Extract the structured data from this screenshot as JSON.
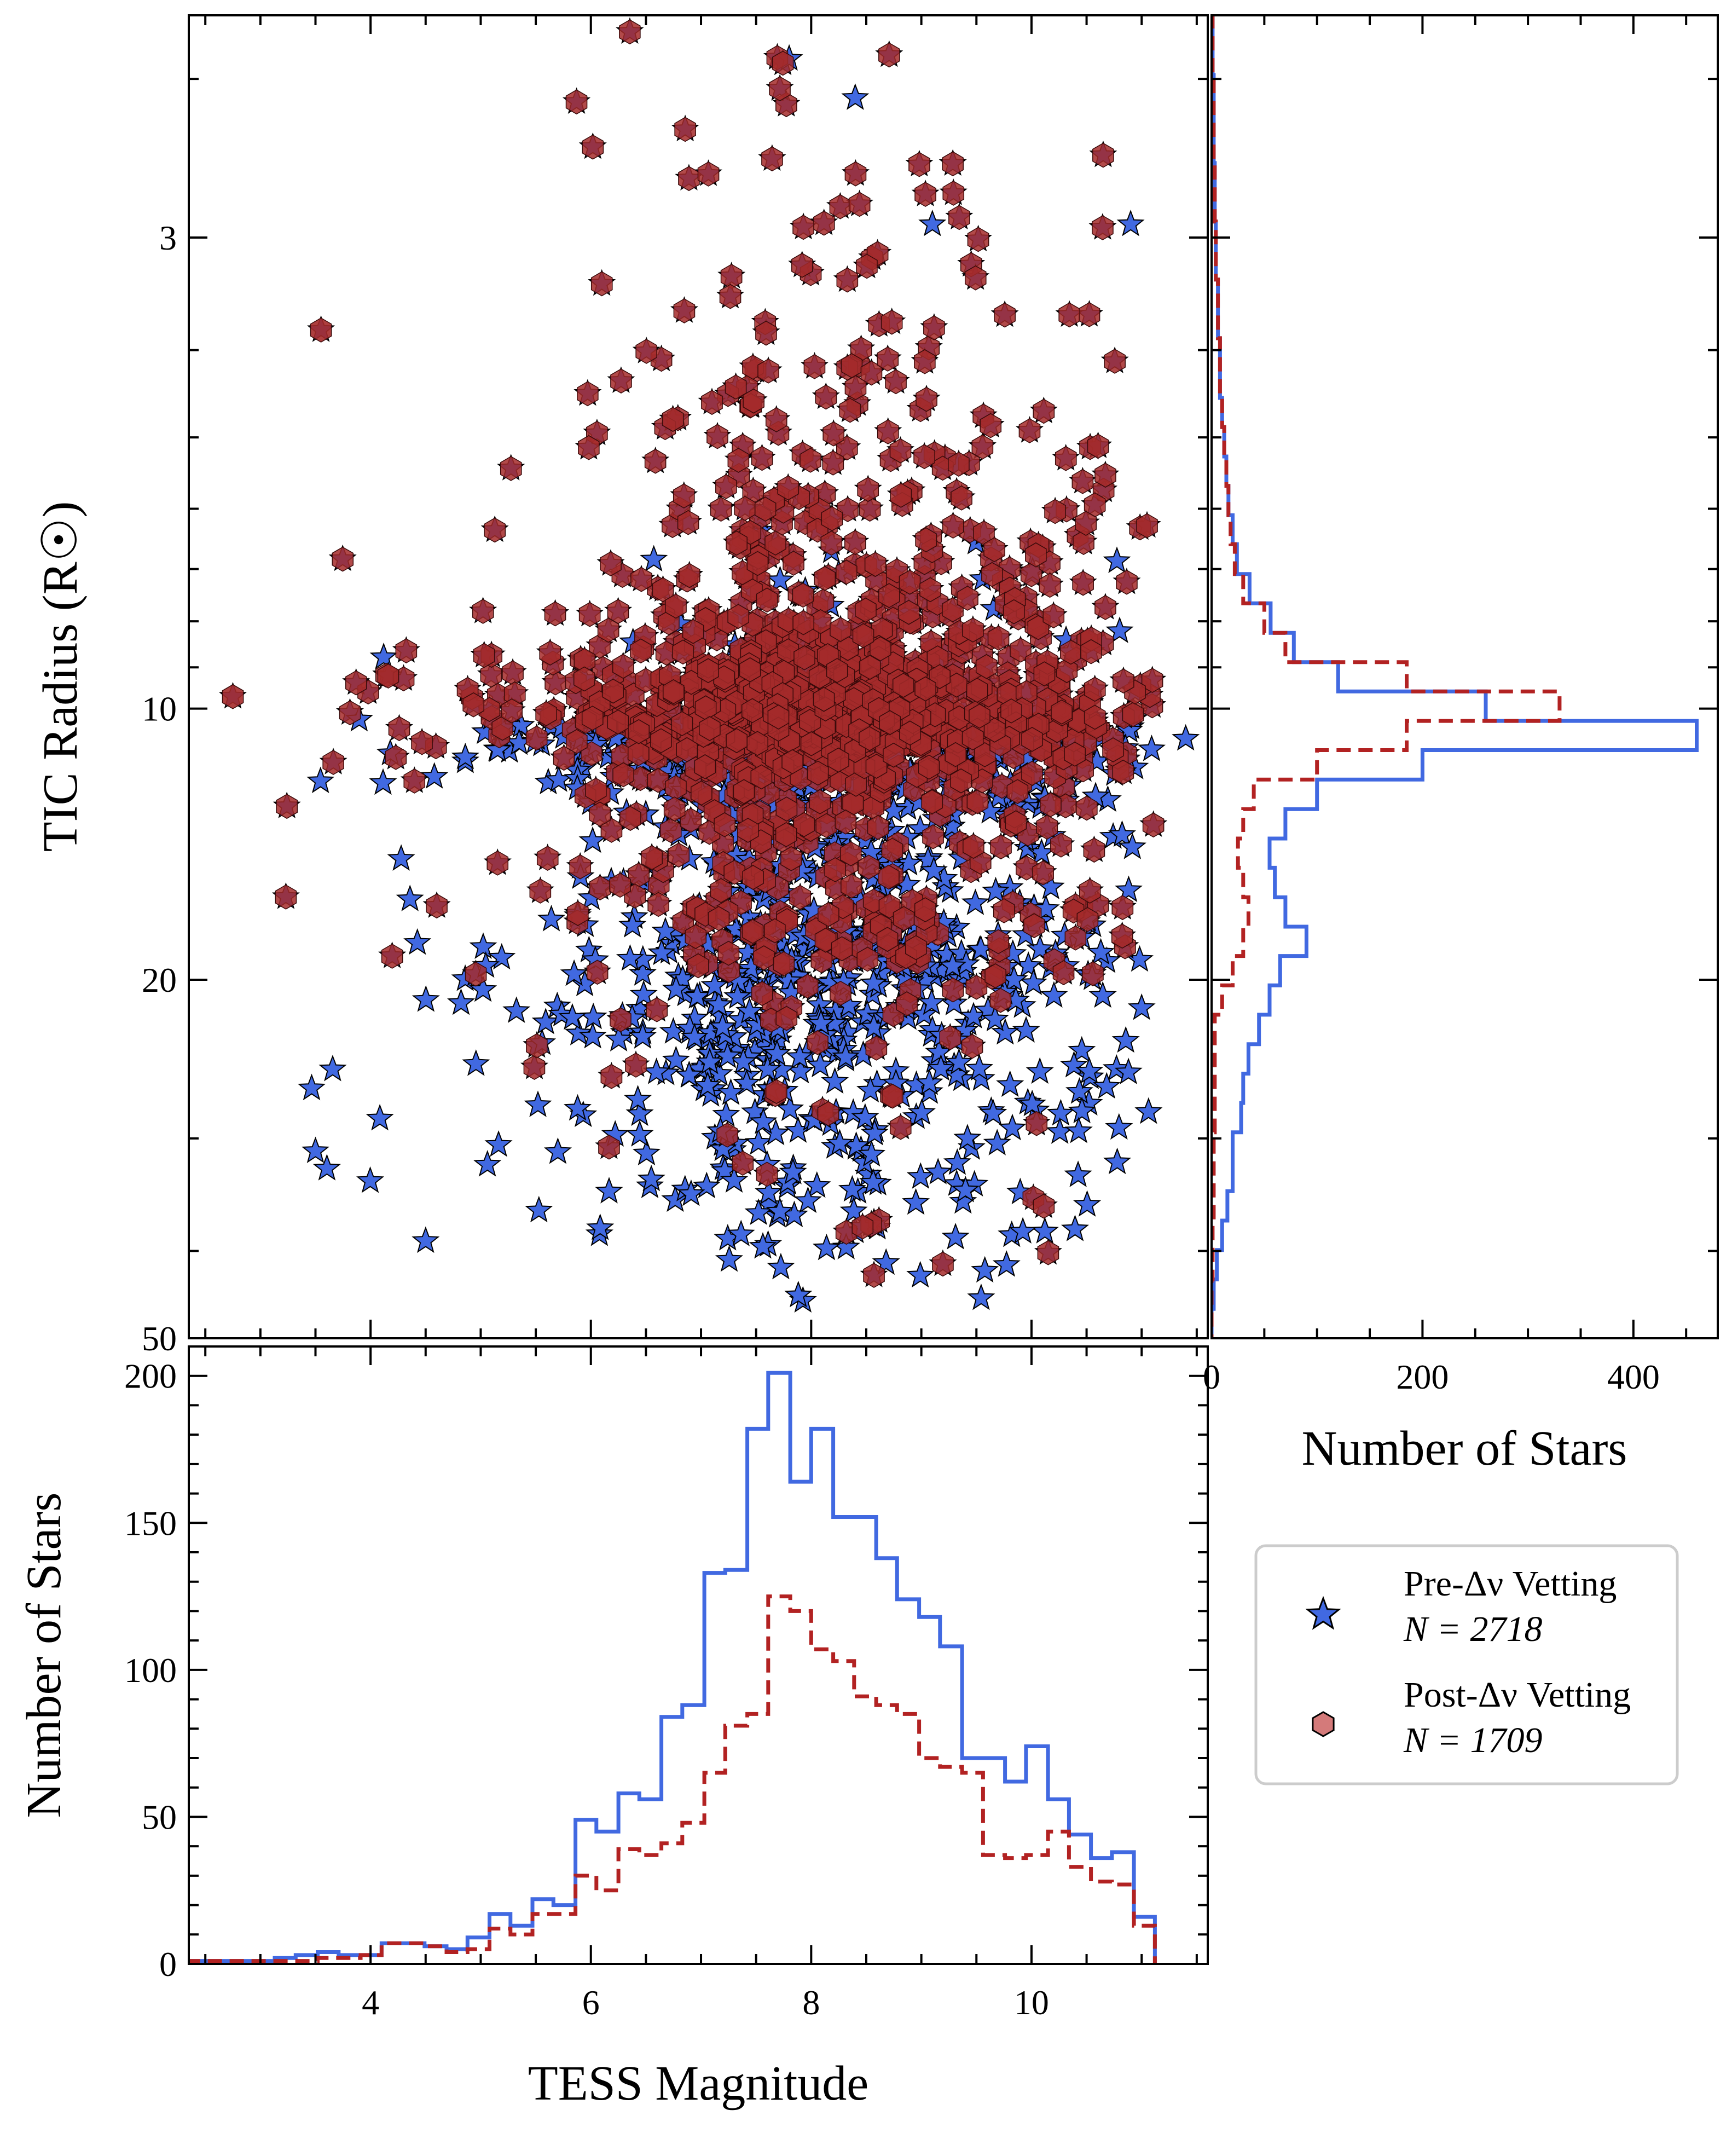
{
  "colors": {
    "pre": "#4169e1",
    "post": "#b22222",
    "post_marker_fill": "#d47a7a",
    "scatter_post_fill": "#a52a2a",
    "axes": "#000000",
    "legend_border": "#cccccc"
  },
  "legend": {
    "entries": [
      {
        "line1": "Pre-Δν Vetting",
        "line2": "N = 2718",
        "marker": "star-icon"
      },
      {
        "line1": "Post-Δν Vetting",
        "line2": "N = 1709",
        "marker": "hexagon-icon"
      }
    ]
  },
  "chart_data": [
    {
      "id": "scatter",
      "type": "scatter",
      "xlabel": "",
      "ylabel": "TIC Radius (R☉)",
      "x_range": [
        2.35,
        11.6
      ],
      "y_scale": "log",
      "y_range": [
        50,
        1.7
      ],
      "y_ticks": [
        3,
        10,
        20,
        50
      ],
      "y_tick_labels": [
        "3",
        "10",
        "20",
        "50"
      ],
      "series": [
        {
          "name": "Pre-Δν Vetting",
          "count": 2718,
          "marker": "star"
        },
        {
          "name": "Post-Δν Vetting",
          "count": 1709,
          "marker": "hexagon"
        }
      ],
      "notable_points": [
        {
          "x": 7.8,
          "y": 1.9,
          "series": "Pre-Δν Vetting"
        },
        {
          "x": 8.4,
          "y": 2.1,
          "series": "Pre-Δν Vetting"
        },
        {
          "x": 9.1,
          "y": 2.9,
          "series": "Pre-Δν Vetting"
        },
        {
          "x": 10.9,
          "y": 2.9,
          "series": "Pre-Δν Vetting"
        },
        {
          "x": 3.55,
          "y": 3.8,
          "series": "Post-Δν Vetting"
        },
        {
          "x": 2.75,
          "y": 9.7,
          "series": "Post-Δν Vetting"
        },
        {
          "x": 11.4,
          "y": 10.8,
          "series": "Pre-Δν Vetting"
        },
        {
          "x": 11.0,
          "y": 21.5,
          "series": "Pre-Δν Vetting"
        },
        {
          "x": 3.5,
          "y": 31,
          "series": "Pre-Δν Vetting"
        },
        {
          "x": 4.5,
          "y": 39,
          "series": "Pre-Δν Vetting"
        }
      ]
    },
    {
      "id": "radius-histogram",
      "type": "bar",
      "orientation": "horizontal",
      "xlabel": "Number of Stars",
      "ylabel": "",
      "x_range": [
        0,
        480
      ],
      "x_ticks": [
        0,
        200,
        400
      ],
      "x_tick_labels": [
        "0",
        "200",
        "400"
      ],
      "y_scale": "log",
      "y_range": [
        50,
        1.7
      ],
      "bin_edges_R": [
        1.7,
        1.83,
        1.98,
        2.13,
        2.3,
        2.48,
        2.67,
        2.88,
        3.1,
        3.34,
        3.6,
        3.88,
        4.19,
        4.52,
        4.87,
        5.25,
        5.66,
        6.1,
        6.57,
        7.09,
        7.64,
        8.24,
        8.88,
        9.57,
        10.32,
        11.12,
        11.99,
        12.93,
        13.94,
        15.02,
        16.2,
        17.46,
        18.82,
        20.29,
        21.87,
        23.58,
        25.42,
        27.4,
        29.54,
        31.85,
        34.33,
        37.01,
        39.9,
        43.02,
        46.38,
        50.0
      ],
      "series": [
        {
          "name": "Pre-Δν Vetting",
          "values": [
            1,
            1,
            2,
            2,
            2,
            3,
            3,
            4,
            4,
            6,
            6,
            8,
            8,
            10,
            12,
            14,
            16,
            20,
            24,
            36,
            56,
            78,
            120,
            260,
            460,
            200,
            100,
            70,
            55,
            60,
            70,
            90,
            65,
            55,
            45,
            35,
            30,
            28,
            20,
            20,
            15,
            10,
            5,
            2,
            0
          ]
        },
        {
          "name": "Post-Δν Vetting",
          "values": [
            1,
            1,
            2,
            2,
            2,
            3,
            3,
            4,
            4,
            6,
            6,
            8,
            8,
            10,
            12,
            14,
            16,
            18,
            22,
            30,
            50,
            70,
            185,
            330,
            185,
            100,
            40,
            30,
            25,
            30,
            35,
            30,
            20,
            10,
            3,
            3,
            3,
            3,
            2,
            2,
            2,
            1,
            1,
            0,
            0
          ]
        }
      ]
    },
    {
      "id": "magnitude-histogram",
      "type": "bar",
      "orientation": "vertical",
      "xlabel": "TESS Magnitude",
      "ylabel": "Number of Stars",
      "x_range": [
        2.35,
        11.6
      ],
      "x_ticks": [
        4,
        6,
        8,
        10
      ],
      "x_tick_labels": [
        "4",
        "6",
        "8",
        "10"
      ],
      "y_range": [
        0,
        210
      ],
      "y_ticks": [
        0,
        50,
        100,
        150,
        200
      ],
      "y_tick_labels": [
        "0",
        "50",
        "100",
        "150",
        "200"
      ],
      "bin_edges": [
        2.35,
        2.54,
        2.74,
        2.93,
        3.13,
        3.32,
        3.52,
        3.71,
        3.91,
        4.1,
        4.3,
        4.49,
        4.69,
        4.88,
        5.08,
        5.27,
        5.47,
        5.66,
        5.86,
        6.05,
        6.25,
        6.44,
        6.64,
        6.83,
        7.03,
        7.22,
        7.42,
        7.61,
        7.81,
        8.0,
        8.2,
        8.39,
        8.59,
        8.78,
        8.98,
        9.17,
        9.37,
        9.56,
        9.76,
        9.95,
        10.15,
        10.34,
        10.54,
        10.73,
        10.93,
        11.12
      ],
      "series": [
        {
          "name": "Pre-Δν Vetting",
          "values": [
            1,
            1,
            1,
            1,
            2,
            3,
            4,
            3,
            3,
            7,
            7,
            6,
            5,
            9,
            17,
            13,
            22,
            20,
            49,
            45,
            58,
            56,
            84,
            88,
            133,
            134,
            182,
            201,
            164,
            182,
            152,
            152,
            138,
            124,
            118,
            108,
            70,
            70,
            62,
            74,
            56,
            44,
            36,
            38,
            16
          ]
        },
        {
          "name": "Post-Δν Vetting",
          "values": [
            1,
            1,
            1,
            1,
            1,
            1,
            2,
            2,
            3,
            7,
            7,
            6,
            4,
            5,
            12,
            10,
            17,
            17,
            30,
            25,
            39,
            37,
            41,
            48,
            65,
            81,
            85,
            125,
            120,
            107,
            103,
            91,
            88,
            85,
            70,
            67,
            65,
            37,
            36,
            37,
            45,
            33,
            28,
            27,
            13
          ]
        }
      ]
    }
  ]
}
